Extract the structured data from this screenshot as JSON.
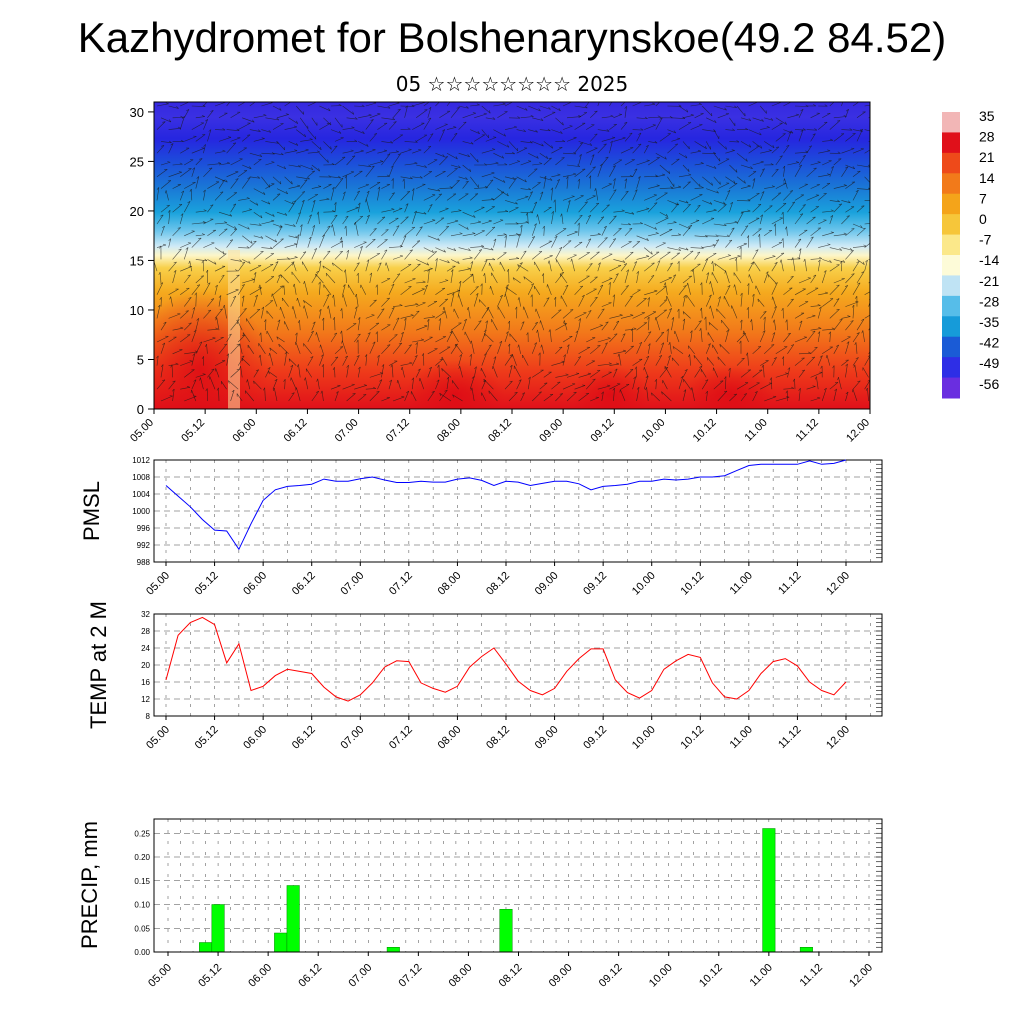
{
  "header": {
    "title": "Kazhydromet for Bolshenarynskoe(49.2 84.52)",
    "subtitle": "05 ☆☆☆☆☆☆☆☆ 2025"
  },
  "chart_data": [
    {
      "type": "heatmap",
      "title": "",
      "xlabel": "",
      "ylabel": "",
      "x_ticks": [
        "05.00",
        "05.12",
        "06.00",
        "06.12",
        "07.00",
        "07.12",
        "08.00",
        "08.12",
        "09.00",
        "09.12",
        "10.00",
        "10.12",
        "11.00",
        "11.12",
        "12.00"
      ],
      "y_ticks": [
        0,
        5,
        10,
        15,
        20,
        25,
        30
      ],
      "ylim": [
        0,
        31
      ],
      "colorbar_labels": [
        "35",
        "28",
        "21",
        "14",
        "7",
        "0",
        "-7",
        "-14",
        "-21",
        "-28",
        "-35",
        "-42",
        "-49",
        "-56"
      ],
      "colors": [
        "#f2b6b6",
        "#e0101a",
        "#ee4a1a",
        "#f27a1a",
        "#f4a41a",
        "#f6c63a",
        "#fbe88a",
        "#fdfbd8",
        "#bfe3f4",
        "#56bde9",
        "#169bd9",
        "#1a5bd6",
        "#2e2ee6",
        "#6a2ee0"
      ],
      "vectors": "wind barbs overlay"
    },
    {
      "type": "line",
      "ylabel": "PMSL",
      "ylim": [
        988,
        1012
      ],
      "y_ticks": [
        988,
        992,
        996,
        1000,
        1004,
        1008,
        1012
      ],
      "x_ticks": [
        "05.00",
        "05.12",
        "06.00",
        "06.12",
        "07.00",
        "07.12",
        "08.00",
        "08.12",
        "09.00",
        "09.12",
        "10.00",
        "10.12",
        "11.00",
        "11.12",
        "12.00"
      ],
      "x": [
        0,
        3,
        6,
        9,
        12,
        15,
        18,
        21,
        24,
        27,
        30,
        33,
        36,
        39,
        42,
        45,
        48,
        51,
        54,
        57,
        60,
        63,
        66,
        69,
        72,
        75,
        78,
        81,
        84,
        87,
        90,
        93,
        96,
        99,
        102,
        105,
        108,
        111,
        114,
        117,
        120,
        123,
        126,
        129,
        132,
        135,
        138,
        141,
        144,
        147,
        150,
        153,
        156,
        159,
        162,
        165,
        168
      ],
      "series": [
        {
          "color": "#0000ff",
          "values": [
            1006,
            1003.5,
            1001,
            998,
            995.5,
            995.3,
            991,
            997,
            1002.5,
            1005,
            1005.8,
            1006,
            1006.3,
            1007.5,
            1007,
            1007,
            1007.6,
            1008,
            1007.3,
            1006.7,
            1006.7,
            1007,
            1006.8,
            1006.8,
            1007.5,
            1007.8,
            1007.2,
            1006,
            1007,
            1006.8,
            1006,
            1006.5,
            1007,
            1007,
            1006.4,
            1005,
            1005.8,
            1006,
            1006.3,
            1007,
            1007,
            1007.5,
            1007.3,
            1007.5,
            1008,
            1008,
            1008.3,
            1009.5,
            1010.7,
            1011,
            1011,
            1011,
            1011,
            1011.8,
            1011,
            1011.2,
            1012
          ]
        }
      ]
    },
    {
      "type": "line",
      "ylabel": "TEMP at 2 M",
      "ylim": [
        8,
        32
      ],
      "y_ticks": [
        8,
        12,
        16,
        20,
        24,
        28,
        32
      ],
      "x_ticks": [
        "05.00",
        "05.12",
        "06.00",
        "06.12",
        "07.00",
        "07.12",
        "08.00",
        "08.12",
        "09.00",
        "09.12",
        "10.00",
        "10.12",
        "11.00",
        "11.12",
        "12.00"
      ],
      "x": [
        0,
        3,
        6,
        9,
        12,
        15,
        18,
        21,
        24,
        27,
        30,
        33,
        36,
        39,
        42,
        45,
        48,
        51,
        54,
        57,
        60,
        63,
        66,
        69,
        72,
        75,
        78,
        81,
        84,
        87,
        90,
        93,
        96,
        99,
        102,
        105,
        108,
        111,
        114,
        117,
        120,
        123,
        126,
        129,
        132,
        135,
        138,
        141,
        144,
        147,
        150,
        153,
        156,
        159,
        162,
        165,
        168
      ],
      "series": [
        {
          "color": "#ff0000",
          "values": [
            16.5,
            27,
            30,
            31.2,
            29.5,
            20.5,
            25,
            14,
            15,
            17.5,
            19,
            18.5,
            18,
            14.8,
            12.5,
            11.5,
            13,
            15.8,
            19.5,
            21,
            20.8,
            15.8,
            14.5,
            13.6,
            15,
            19.5,
            22,
            24,
            20.2,
            16.2,
            14,
            13,
            14.5,
            18.5,
            21.5,
            23.8,
            23.8,
            16.5,
            13.5,
            12.2,
            14,
            19,
            21,
            22.5,
            21.8,
            15.8,
            12.5,
            12,
            14,
            18,
            20.8,
            21.5,
            19.8,
            16,
            14,
            13,
            16
          ]
        }
      ]
    },
    {
      "type": "bar",
      "ylabel": "PRECIP, mm",
      "ylim": [
        0,
        0.28
      ],
      "y_ticks": [
        "0.00",
        "0.05",
        "0.10",
        "0.15",
        "0.20",
        "0.25"
      ],
      "x_ticks": [
        "05.00",
        "05.12",
        "06.00",
        "06.12",
        "07.00",
        "07.12",
        "08.00",
        "08.12",
        "09.00",
        "09.12",
        "10.00",
        "10.12",
        "11.00",
        "11.12",
        "12.00"
      ],
      "x": [
        9,
        12,
        27,
        30,
        54,
        81,
        144,
        153
      ],
      "values": [
        0.02,
        0.1,
        0.04,
        0.14,
        0.01,
        0.09,
        0.26,
        0.01
      ],
      "color": "#00ff00"
    }
  ]
}
